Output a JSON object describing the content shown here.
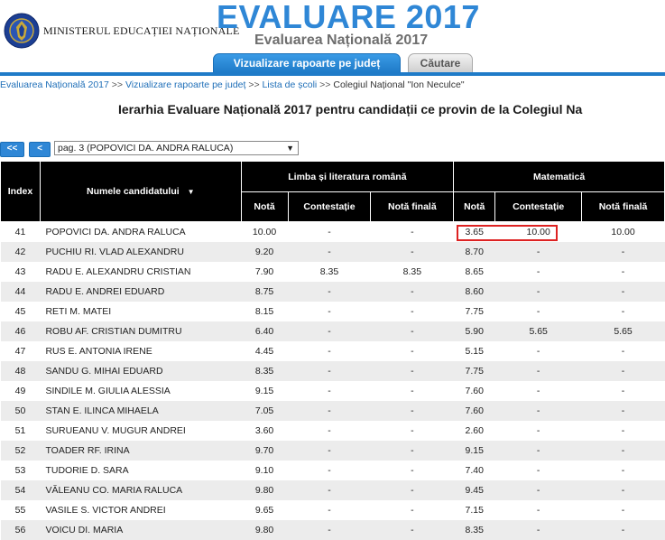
{
  "header": {
    "ministry": "MINISTERUL EDUCAȚIEI NAȚIONALE",
    "title": "EVALUARE 2017",
    "subtitle": "Evaluarea Națională 2017"
  },
  "tabs": [
    {
      "label": "Vizualizare rapoarte pe județ",
      "active": true
    },
    {
      "label": "Căutare",
      "active": false
    }
  ],
  "breadcrumb": {
    "items": [
      "Evaluarea Națională 2017",
      "Vizualizare rapoarte pe județ",
      "Lista de școli",
      "Colegiul Național \"Ion Neculce\""
    ],
    "separator": ">>"
  },
  "page_heading": "Ierarhia Evaluare Națională 2017 pentru candidații ce provin de la Colegiul Na",
  "nav": {
    "first_label": "<<",
    "prev_label": "<",
    "page_selected": "pag. 3 (POPOVICI DA. ANDRA RALUCA)"
  },
  "table": {
    "headers": {
      "index": "Index",
      "name": "Numele candidatului",
      "romana": "Limba și literatura română",
      "matematica": "Matematică",
      "nota": "Notă",
      "contestatie": "Contestație",
      "nota_finala": "Notă finală"
    },
    "rows": [
      {
        "index": "41",
        "name": "POPOVICI DA. ANDRA RALUCA",
        "ro_nota": "10.00",
        "ro_cont": "-",
        "ro_final": "-",
        "ma_nota": "3.65",
        "ma_cont": "10.00",
        "ma_final": "10.00"
      },
      {
        "index": "42",
        "name": "PUCHIU RI. VLAD ALEXANDRU",
        "ro_nota": "9.20",
        "ro_cont": "-",
        "ro_final": "-",
        "ma_nota": "8.70",
        "ma_cont": "-",
        "ma_final": "-"
      },
      {
        "index": "43",
        "name": "RADU E. ALEXANDRU CRISTIAN",
        "ro_nota": "7.90",
        "ro_cont": "8.35",
        "ro_final": "8.35",
        "ma_nota": "8.65",
        "ma_cont": "-",
        "ma_final": "-"
      },
      {
        "index": "44",
        "name": "RADU E. ANDREI EDUARD",
        "ro_nota": "8.75",
        "ro_cont": "-",
        "ro_final": "-",
        "ma_nota": "8.60",
        "ma_cont": "-",
        "ma_final": "-"
      },
      {
        "index": "45",
        "name": "RETI M. MATEI",
        "ro_nota": "8.15",
        "ro_cont": "-",
        "ro_final": "-",
        "ma_nota": "7.75",
        "ma_cont": "-",
        "ma_final": "-"
      },
      {
        "index": "46",
        "name": "ROBU AF. CRISTIAN DUMITRU",
        "ro_nota": "6.40",
        "ro_cont": "-",
        "ro_final": "-",
        "ma_nota": "5.90",
        "ma_cont": "5.65",
        "ma_final": "5.65"
      },
      {
        "index": "47",
        "name": "RUS E. ANTONIA IRENE",
        "ro_nota": "4.45",
        "ro_cont": "-",
        "ro_final": "-",
        "ma_nota": "5.15",
        "ma_cont": "-",
        "ma_final": "-"
      },
      {
        "index": "48",
        "name": "SANDU G. MIHAI EDUARD",
        "ro_nota": "8.35",
        "ro_cont": "-",
        "ro_final": "-",
        "ma_nota": "7.75",
        "ma_cont": "-",
        "ma_final": "-"
      },
      {
        "index": "49",
        "name": "SINDILE M. GIULIA ALESSIA",
        "ro_nota": "9.15",
        "ro_cont": "-",
        "ro_final": "-",
        "ma_nota": "7.60",
        "ma_cont": "-",
        "ma_final": "-"
      },
      {
        "index": "50",
        "name": "STAN E. ILINCA MIHAELA",
        "ro_nota": "7.05",
        "ro_cont": "-",
        "ro_final": "-",
        "ma_nota": "7.60",
        "ma_cont": "-",
        "ma_final": "-"
      },
      {
        "index": "51",
        "name": "SURUEANU V. MUGUR ANDREI",
        "ro_nota": "3.60",
        "ro_cont": "-",
        "ro_final": "-",
        "ma_nota": "2.60",
        "ma_cont": "-",
        "ma_final": "-"
      },
      {
        "index": "52",
        "name": "TOADER RF. IRINA",
        "ro_nota": "9.70",
        "ro_cont": "-",
        "ro_final": "-",
        "ma_nota": "9.15",
        "ma_cont": "-",
        "ma_final": "-"
      },
      {
        "index": "53",
        "name": "TUDORIE D. SARA",
        "ro_nota": "9.10",
        "ro_cont": "-",
        "ro_final": "-",
        "ma_nota": "7.40",
        "ma_cont": "-",
        "ma_final": "-"
      },
      {
        "index": "54",
        "name": "VĂLEANU CO. MARIA RALUCA",
        "ro_nota": "9.80",
        "ro_cont": "-",
        "ro_final": "-",
        "ma_nota": "9.45",
        "ma_cont": "-",
        "ma_final": "-"
      },
      {
        "index": "55",
        "name": "VASILE S. VICTOR ANDREI",
        "ro_nota": "9.65",
        "ro_cont": "-",
        "ro_final": "-",
        "ma_nota": "7.15",
        "ma_cont": "-",
        "ma_final": "-"
      },
      {
        "index": "56",
        "name": "VOICU DI. MARIA",
        "ro_nota": "9.80",
        "ro_cont": "-",
        "ro_final": "-",
        "ma_nota": "8.35",
        "ma_cont": "-",
        "ma_final": "-"
      }
    ]
  },
  "colors": {
    "accent": "#2f87d6",
    "header_bg": "#000000",
    "highlight": "#dd2222"
  }
}
